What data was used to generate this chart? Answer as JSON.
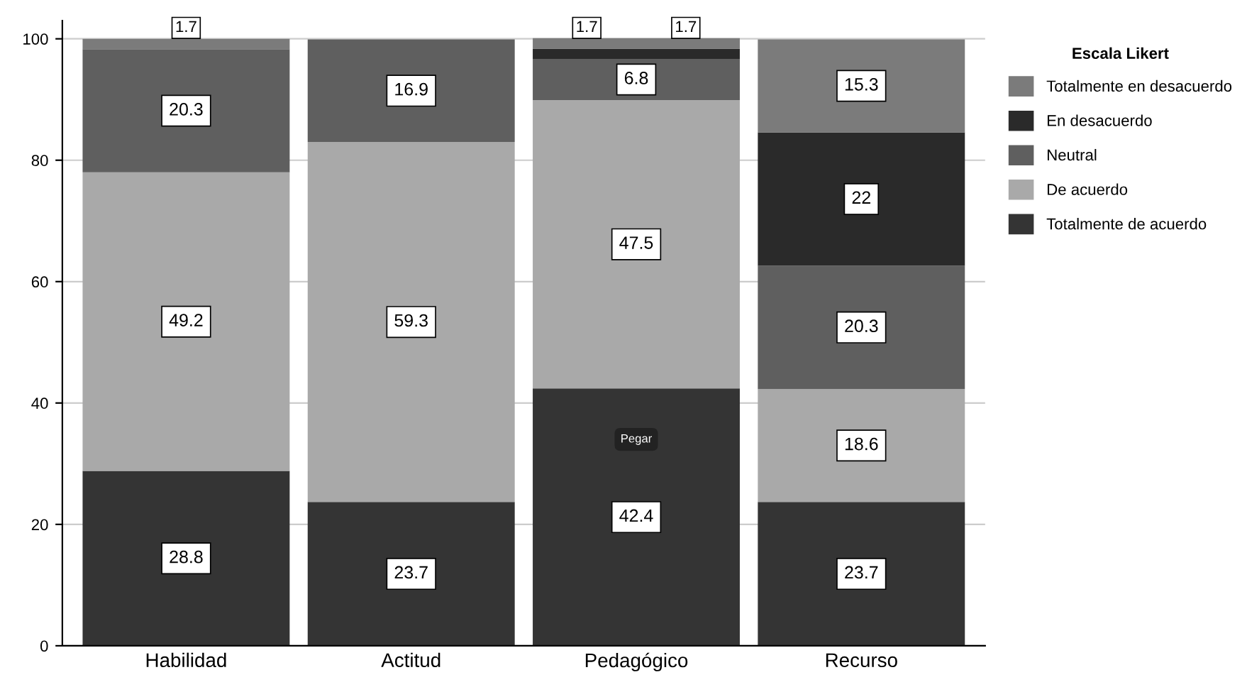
{
  "chart_data": {
    "type": "bar",
    "stacked": true,
    "categories": [
      "Habilidad",
      "Actitud",
      "Pedagógico",
      "Recurso"
    ],
    "series": [
      {
        "name": "Totalmente de acuerdo",
        "color": "#343434",
        "values": [
          28.8,
          23.7,
          42.4,
          23.7
        ]
      },
      {
        "name": "De acuerdo",
        "color": "#a9a9a9",
        "values": [
          49.2,
          59.3,
          47.5,
          18.6
        ]
      },
      {
        "name": "Neutral",
        "color": "#5f5f5f",
        "values": [
          20.3,
          16.9,
          6.8,
          20.3
        ]
      },
      {
        "name": "En desacuerdo",
        "color": "#2a2a2a",
        "values": [
          null,
          null,
          1.7,
          22
        ]
      },
      {
        "name": "Totalmente en desacuerdo",
        "color": "#7b7b7b",
        "values": [
          1.7,
          null,
          1.7,
          15.3
        ]
      }
    ],
    "ylim": [
      0,
      103
    ],
    "yticks": [
      0,
      20,
      40,
      60,
      80,
      100
    ],
    "grid": "y",
    "legend": "right",
    "legend_title": "Escala Likert",
    "data_labels": true,
    "annotations": [
      {
        "text": "Pegar",
        "x": "Pedagógico",
        "y": 34
      }
    ]
  }
}
